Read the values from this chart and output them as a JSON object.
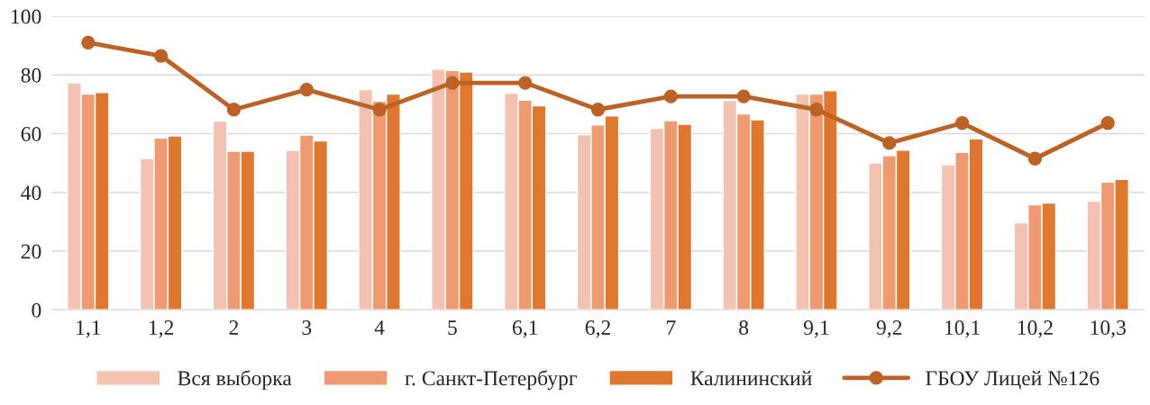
{
  "chart_data": {
    "type": "bar",
    "categories": [
      "1,1",
      "1,2",
      "2",
      "3",
      "4",
      "5",
      "6,1",
      "6,2",
      "7",
      "8",
      "9,1",
      "9,2",
      "10,1",
      "10,2",
      "10,3"
    ],
    "series": [
      {
        "name": "Вся выборка",
        "color": "#f4c2b0",
        "values": [
          77.3,
          51.5,
          64.3,
          54.3,
          75,
          82,
          73.8,
          59.7,
          61.8,
          71.3,
          73.5,
          50,
          49.4,
          29.6,
          37
        ]
      },
      {
        "name": "г. Санкт-Петербург",
        "color": "#ef9a70",
        "values": [
          73.5,
          58.5,
          54,
          59.5,
          71,
          81.5,
          71.4,
          63,
          64.4,
          66.7,
          73.5,
          52.5,
          53.6,
          35.8,
          43.5
        ]
      },
      {
        "name": "Калининский",
        "color": "#df772f",
        "values": [
          74,
          59.2,
          54,
          57.5,
          73.5,
          81,
          69.5,
          66,
          63.2,
          64.7,
          74.6,
          54.4,
          58.2,
          36.4,
          44.4
        ]
      },
      {
        "name": "ГБОУ Лицей №126",
        "type": "line",
        "color": "#bc6225",
        "marker": "circle",
        "values": [
          91,
          86.5,
          68.2,
          75,
          68.2,
          77.3,
          77.3,
          68.2,
          72.7,
          72.7,
          68.2,
          56.8,
          63.6,
          51.5,
          63.6
        ]
      }
    ],
    "ylim": [
      0,
      100
    ],
    "yticks": [
      0,
      20,
      40,
      60,
      80,
      100
    ],
    "grid": "y",
    "legend": "bottom"
  }
}
